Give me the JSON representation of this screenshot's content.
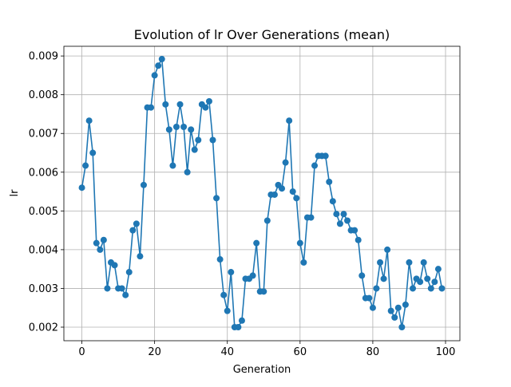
{
  "chart_data": {
    "type": "line",
    "title": "Evolution of lr Over Generations (mean)",
    "xlabel": "Generation",
    "ylabel": "lr",
    "xlim": [
      -4.95,
      103.95
    ],
    "ylim": [
      0.00165,
      0.00925
    ],
    "xticks": [
      0,
      20,
      40,
      60,
      80,
      100
    ],
    "xtick_labels": [
      "0",
      "20",
      "40",
      "60",
      "80",
      "100"
    ],
    "yticks": [
      0.002,
      0.003,
      0.004,
      0.005,
      0.006,
      0.007,
      0.008,
      0.009
    ],
    "ytick_labels": [
      "0.002",
      "0.003",
      "0.004",
      "0.005",
      "0.006",
      "0.007",
      "0.008",
      "0.009"
    ],
    "grid": true,
    "marker": "circle",
    "color": "#1f77b4",
    "series": [
      {
        "x": [
          0,
          1,
          2,
          3,
          4,
          5,
          6,
          7,
          8,
          9,
          10,
          11,
          12,
          13,
          14,
          15,
          16,
          17,
          18,
          19,
          20,
          21,
          22,
          23,
          24,
          25,
          26,
          27,
          28,
          29,
          30,
          31,
          32,
          33,
          34,
          35,
          36,
          37,
          38,
          39,
          40,
          41,
          42,
          43,
          44,
          45,
          46,
          47,
          48,
          49,
          50,
          51,
          52,
          53,
          54,
          55,
          56,
          57,
          58,
          59,
          60,
          61,
          62,
          63,
          64,
          65,
          66,
          67,
          68,
          69,
          70,
          71,
          72,
          73,
          74,
          75,
          76,
          77,
          78,
          79,
          80,
          81,
          82,
          83,
          84,
          85,
          86,
          87,
          88,
          89,
          90,
          91,
          92,
          93,
          94,
          95,
          96,
          97,
          98,
          99
        ],
        "values": [
          0.0056,
          0.00617,
          0.00733,
          0.0065,
          0.00417,
          0.004,
          0.00425,
          0.003,
          0.00367,
          0.0036,
          0.003,
          0.003,
          0.00283,
          0.00342,
          0.0045,
          0.00467,
          0.00383,
          0.00567,
          0.00767,
          0.00767,
          0.0085,
          0.00875,
          0.00892,
          0.00775,
          0.0071,
          0.00617,
          0.00717,
          0.00775,
          0.00717,
          0.006,
          0.0071,
          0.00658,
          0.00683,
          0.00775,
          0.00767,
          0.00783,
          0.00683,
          0.00533,
          0.00375,
          0.00283,
          0.00242,
          0.00342,
          0.002,
          0.002,
          0.00217,
          0.00325,
          0.00325,
          0.00333,
          0.00417,
          0.00292,
          0.00292,
          0.00475,
          0.00542,
          0.00542,
          0.00567,
          0.00558,
          0.00625,
          0.00733,
          0.0055,
          0.00533,
          0.00417,
          0.00367,
          0.00483,
          0.00483,
          0.00617,
          0.00642,
          0.00642,
          0.00642,
          0.00575,
          0.00525,
          0.00492,
          0.00467,
          0.00492,
          0.00475,
          0.0045,
          0.0045,
          0.00425,
          0.00333,
          0.00275,
          0.00275,
          0.0025,
          0.003,
          0.00367,
          0.00325,
          0.004,
          0.00242,
          0.00225,
          0.0025,
          0.002,
          0.00258,
          0.00367,
          0.003,
          0.00325,
          0.00317,
          0.00367,
          0.00325,
          0.003,
          0.00317,
          0.0035,
          0.003
        ]
      }
    ]
  }
}
